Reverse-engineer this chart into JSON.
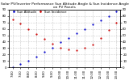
{
  "title": "Solar PV/Inverter Performance Sun Altitude Angle & Sun Incidence Angle on PV Panels",
  "altitude_color": "#0000cc",
  "incidence_color": "#cc0000",
  "bg_color": "#ffffff",
  "grid_color": "#888888",
  "title_fontsize": 3.2,
  "tick_fontsize": 2.8,
  "legend_fontsize": 2.8,
  "altitude_label": "Sun Altitude",
  "incidence_label": "Sun Incidence",
  "xlim": [
    -0.5,
    13.5
  ],
  "ylim": [
    0,
    90
  ],
  "xtick_values": [
    0,
    1,
    2,
    3,
    4,
    5,
    6,
    7,
    8,
    9,
    10,
    11,
    12,
    13
  ],
  "ytick_values": [
    0,
    10,
    20,
    30,
    40,
    50,
    60,
    70,
    80,
    90
  ],
  "xtick_labels": [
    "7:00",
    "7:30",
    "8:00",
    "8:30",
    "9:00",
    "9:30",
    "10:00",
    "10:30",
    "11:00",
    "11:30",
    "12:00",
    "12:30",
    "13:00",
    "13:30"
  ],
  "altitude_x": [
    0,
    1,
    2,
    3,
    4,
    5,
    6,
    7,
    8,
    9,
    10,
    11,
    12,
    13
  ],
  "altitude_y": [
    0,
    5,
    10,
    17,
    24,
    31,
    39,
    46,
    53,
    60,
    67,
    74,
    80,
    87
  ],
  "incidence_x": [
    0,
    1,
    2,
    3,
    4,
    5,
    6,
    7,
    8,
    9,
    10,
    11,
    12,
    13
  ],
  "incidence_y": [
    75,
    68,
    60,
    52,
    44,
    37,
    30,
    28,
    27,
    30,
    36,
    46,
    58,
    70
  ]
}
